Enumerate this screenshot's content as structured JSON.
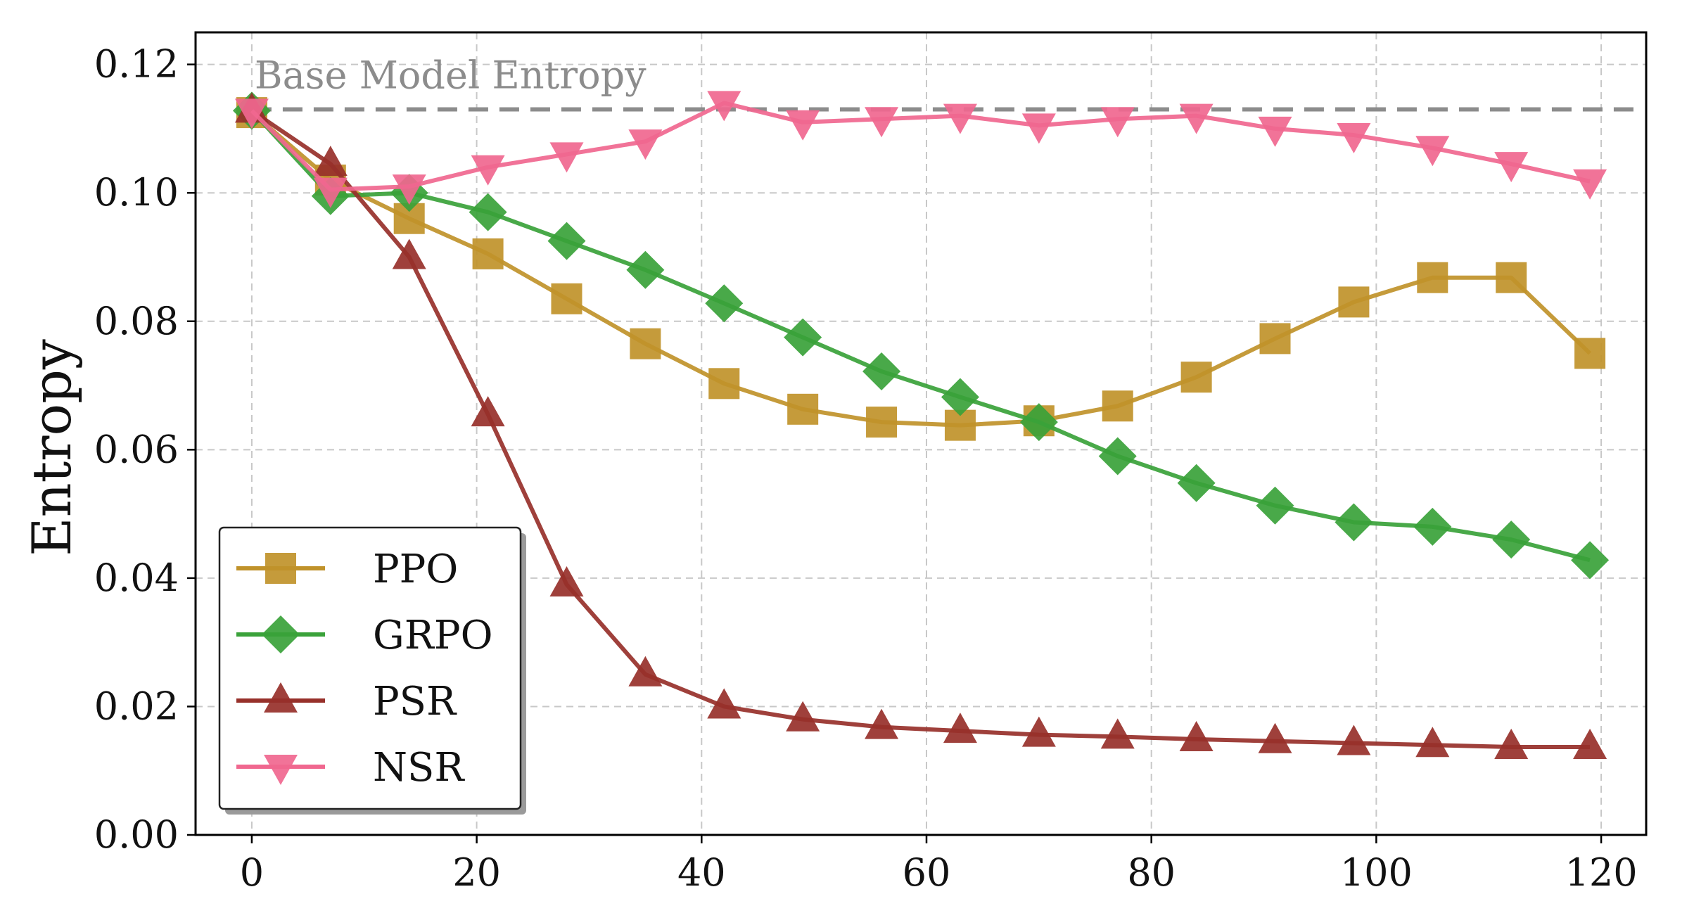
{
  "chart_data": {
    "type": "line",
    "title": "",
    "xlabel": "",
    "ylabel": "Entropy",
    "xlim": [
      -5,
      124
    ],
    "ylim": [
      0.0,
      0.125
    ],
    "xticks": [
      0,
      20,
      40,
      60,
      80,
      100,
      120
    ],
    "xtick_labels": [
      "0",
      "20",
      "40",
      "60",
      "80",
      "100",
      "120"
    ],
    "yticks": [
      0.0,
      0.02,
      0.04,
      0.06,
      0.08,
      0.1,
      0.12
    ],
    "ytick_labels": [
      "0.00",
      "0.02",
      "0.04",
      "0.06",
      "0.08",
      "0.10",
      "0.12"
    ],
    "grid": true,
    "legend_position": "lower-left",
    "reference_line": {
      "y": 0.113,
      "label": "Base Model Entropy",
      "color": "#8c8c8c",
      "style": "dashed"
    },
    "x": [
      0,
      7,
      14,
      21,
      28,
      35,
      42,
      49,
      56,
      63,
      70,
      77,
      84,
      91,
      98,
      105,
      112,
      119
    ],
    "series": [
      {
        "name": "PPO",
        "color": "#c0922a",
        "marker": "square",
        "values": [
          0.1125,
          0.102,
          0.096,
          0.0905,
          0.0835,
          0.0765,
          0.0703,
          0.0663,
          0.0643,
          0.0638,
          0.0645,
          0.0668,
          0.0713,
          0.0773,
          0.083,
          0.0868,
          0.0868,
          0.075
        ]
      },
      {
        "name": "GRPO",
        "color": "#3aa23a",
        "marker": "diamond",
        "values": [
          0.1128,
          0.0995,
          0.1,
          0.097,
          0.0925,
          0.088,
          0.0828,
          0.0775,
          0.0722,
          0.0682,
          0.0643,
          0.059,
          0.0548,
          0.0513,
          0.0487,
          0.048,
          0.046,
          0.0428
        ]
      },
      {
        "name": "PSR",
        "color": "#97302a",
        "marker": "triangle-up",
        "values": [
          0.1128,
          0.1045,
          0.09,
          0.0655,
          0.039,
          0.025,
          0.02,
          0.018,
          0.0168,
          0.0162,
          0.0156,
          0.0153,
          0.0149,
          0.0146,
          0.0143,
          0.014,
          0.0137,
          0.0137
        ]
      },
      {
        "name": "NSR",
        "color": "#f0678f",
        "marker": "triangle-down",
        "values": [
          0.1128,
          0.1005,
          0.101,
          0.104,
          0.106,
          0.108,
          0.114,
          0.111,
          0.1115,
          0.112,
          0.1105,
          0.1115,
          0.112,
          0.11,
          0.109,
          0.107,
          0.1045,
          0.1018
        ]
      }
    ]
  }
}
